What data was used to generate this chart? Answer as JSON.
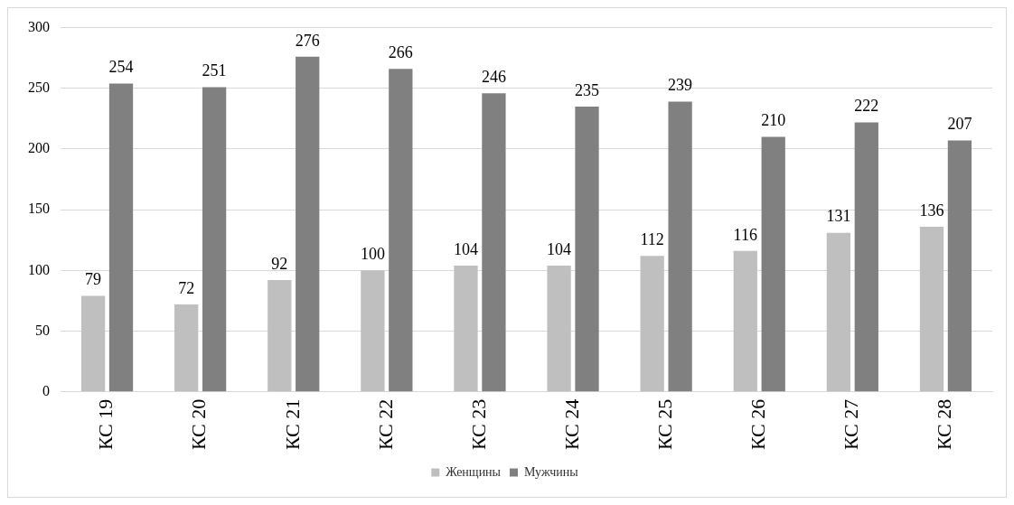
{
  "chart_data": {
    "type": "bar",
    "categories": [
      "КС 19",
      "КС 20",
      "КС 21",
      "КС 22",
      "КС 23",
      "КС 24",
      "КС 25",
      "КС 26",
      "КС 27",
      "КС 28"
    ],
    "series": [
      {
        "name": "Женщины",
        "color": "#bfbfbf",
        "values": [
          79,
          72,
          92,
          100,
          104,
          104,
          112,
          116,
          131,
          136
        ]
      },
      {
        "name": "Мужчины",
        "color": "#808080",
        "values": [
          254,
          251,
          276,
          266,
          246,
          235,
          239,
          210,
          222,
          207
        ]
      }
    ],
    "ylim": [
      0,
      300
    ],
    "yticks": [
      0,
      50,
      100,
      150,
      200,
      250,
      300
    ],
    "grid": "y",
    "legend": "bottom",
    "data_labels": true
  }
}
